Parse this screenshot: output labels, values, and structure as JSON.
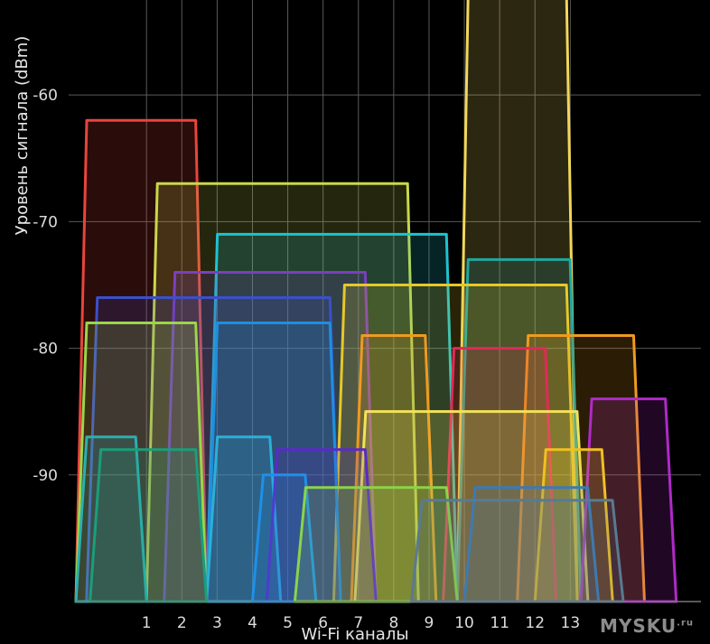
{
  "chart_data": {
    "type": "area",
    "xlabel": "Wi-Fi каналы",
    "ylabel": "Уровень сигнала (dBm)",
    "x_ticks": [
      "1",
      "2",
      "3",
      "4",
      "5",
      "6",
      "7",
      "8",
      "9",
      "10",
      "11",
      "12",
      "13"
    ],
    "y_ticks": [
      -60,
      -70,
      -80,
      -90
    ],
    "xlim": [
      -1,
      16.7
    ],
    "ylim": [
      -100,
      -52.5
    ],
    "grid": true,
    "legend": "none",
    "watermark": "MYSKU",
    "watermark_suffix": ".ru",
    "series": [
      {
        "left": 9.8,
        "right": 13.2,
        "peak": -52,
        "color": "#f2d75a"
      },
      {
        "left": -1,
        "right": 2.7,
        "peak": -62,
        "color": "#e8453c"
      },
      {
        "left": 1,
        "right": 8.7,
        "peak": -67,
        "color": "#c8d84a"
      },
      {
        "left": 2.7,
        "right": 9.8,
        "peak": -71,
        "color": "#1fc2cf"
      },
      {
        "left": 9.8,
        "right": 13.3,
        "peak": -73,
        "color": "#1fa89f"
      },
      {
        "left": 1.5,
        "right": 7.5,
        "peak": -74,
        "color": "#7b3fbe"
      },
      {
        "left": 6.3,
        "right": 13.2,
        "peak": -75,
        "color": "#e6c828"
      },
      {
        "left": -0.7,
        "right": 6.5,
        "peak": -76,
        "color": "#3c4fc8"
      },
      {
        "left": -1,
        "right": 2.7,
        "peak": -78,
        "color": "#9ad64a"
      },
      {
        "left": 2.7,
        "right": 6.5,
        "peak": -78,
        "color": "#1e8fe0"
      },
      {
        "left": 6.8,
        "right": 9.2,
        "peak": -79,
        "color": "#f09a1e"
      },
      {
        "left": 11.5,
        "right": 15.1,
        "peak": -79,
        "color": "#f09a1e"
      },
      {
        "left": 9.4,
        "right": 12.6,
        "peak": -80,
        "color": "#e02a5a"
      },
      {
        "left": 6.9,
        "right": 13.5,
        "peak": -85,
        "color": "#f2e25a"
      },
      {
        "left": 13.3,
        "right": 16,
        "peak": -84,
        "color": "#b02ac8"
      },
      {
        "left": -1,
        "right": 1,
        "peak": -87,
        "color": "#2ab0b0"
      },
      {
        "left": 2.7,
        "right": 4.8,
        "peak": -87,
        "color": "#2ab0d8"
      },
      {
        "left": -0.6,
        "right": 2.7,
        "peak": -88,
        "color": "#1a9e7a"
      },
      {
        "left": 4.4,
        "right": 7.5,
        "peak": -88,
        "color": "#5a2ac8"
      },
      {
        "left": 12,
        "right": 14.2,
        "peak": -88,
        "color": "#f0c020"
      },
      {
        "left": 4,
        "right": 5.8,
        "peak": -90,
        "color": "#1e90e8"
      },
      {
        "left": 5.2,
        "right": 9.8,
        "peak": -91,
        "color": "#8ad44a"
      },
      {
        "left": 10,
        "right": 13.8,
        "peak": -91,
        "color": "#3a7ab8"
      },
      {
        "left": 8.5,
        "right": 14.5,
        "peak": -92,
        "color": "#5a7a90"
      }
    ]
  }
}
